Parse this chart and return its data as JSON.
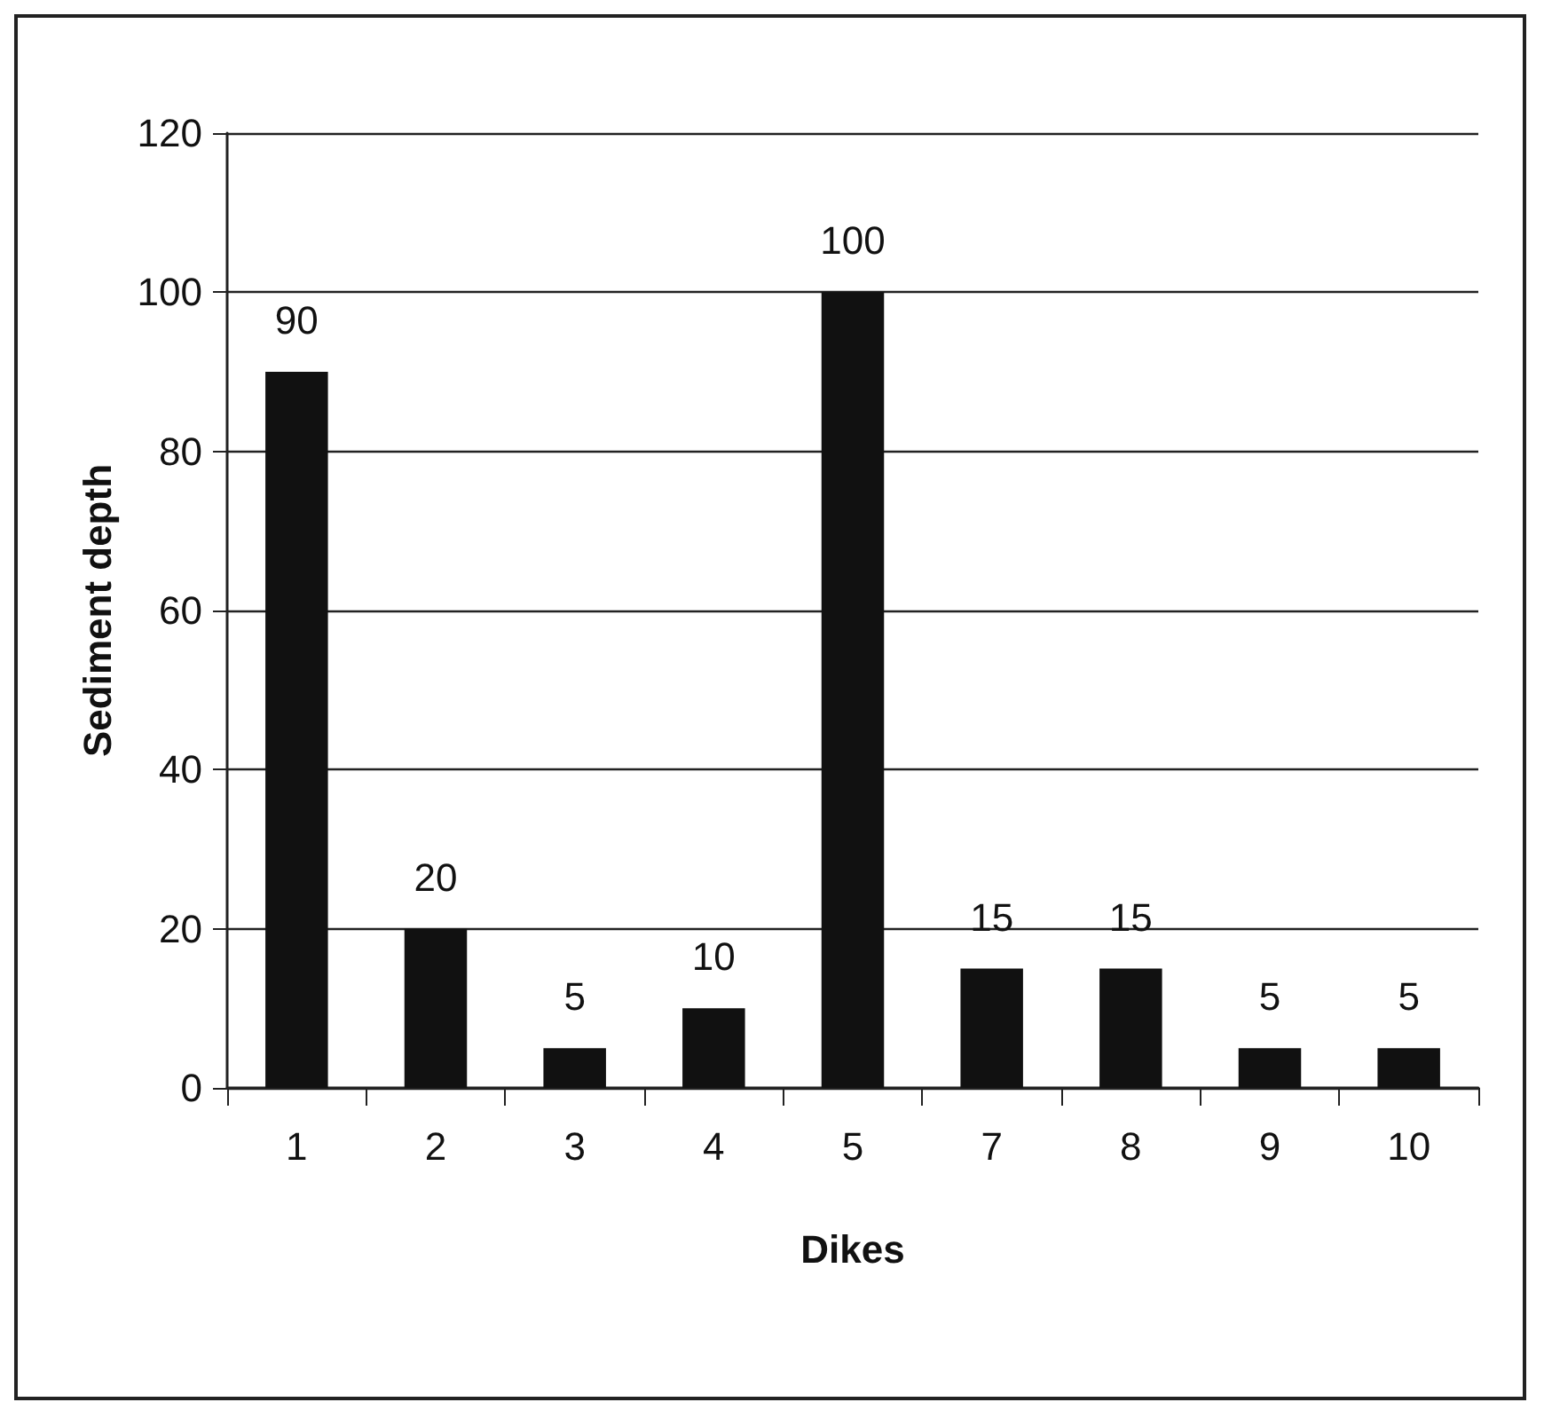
{
  "chart_data": {
    "type": "bar",
    "xlabel": "Dikes",
    "ylabel": "Sediment depth",
    "categories": [
      "1",
      "2",
      "3",
      "4",
      "5",
      "7",
      "8",
      "9",
      "10"
    ],
    "values": [
      90,
      20,
      5,
      10,
      100,
      15,
      15,
      5,
      5
    ],
    "color": "#111111",
    "data_labels": true,
    "grid": "y",
    "ylim": [
      0,
      120
    ],
    "yticks": [
      0,
      20,
      40,
      60,
      80,
      100,
      120
    ]
  }
}
